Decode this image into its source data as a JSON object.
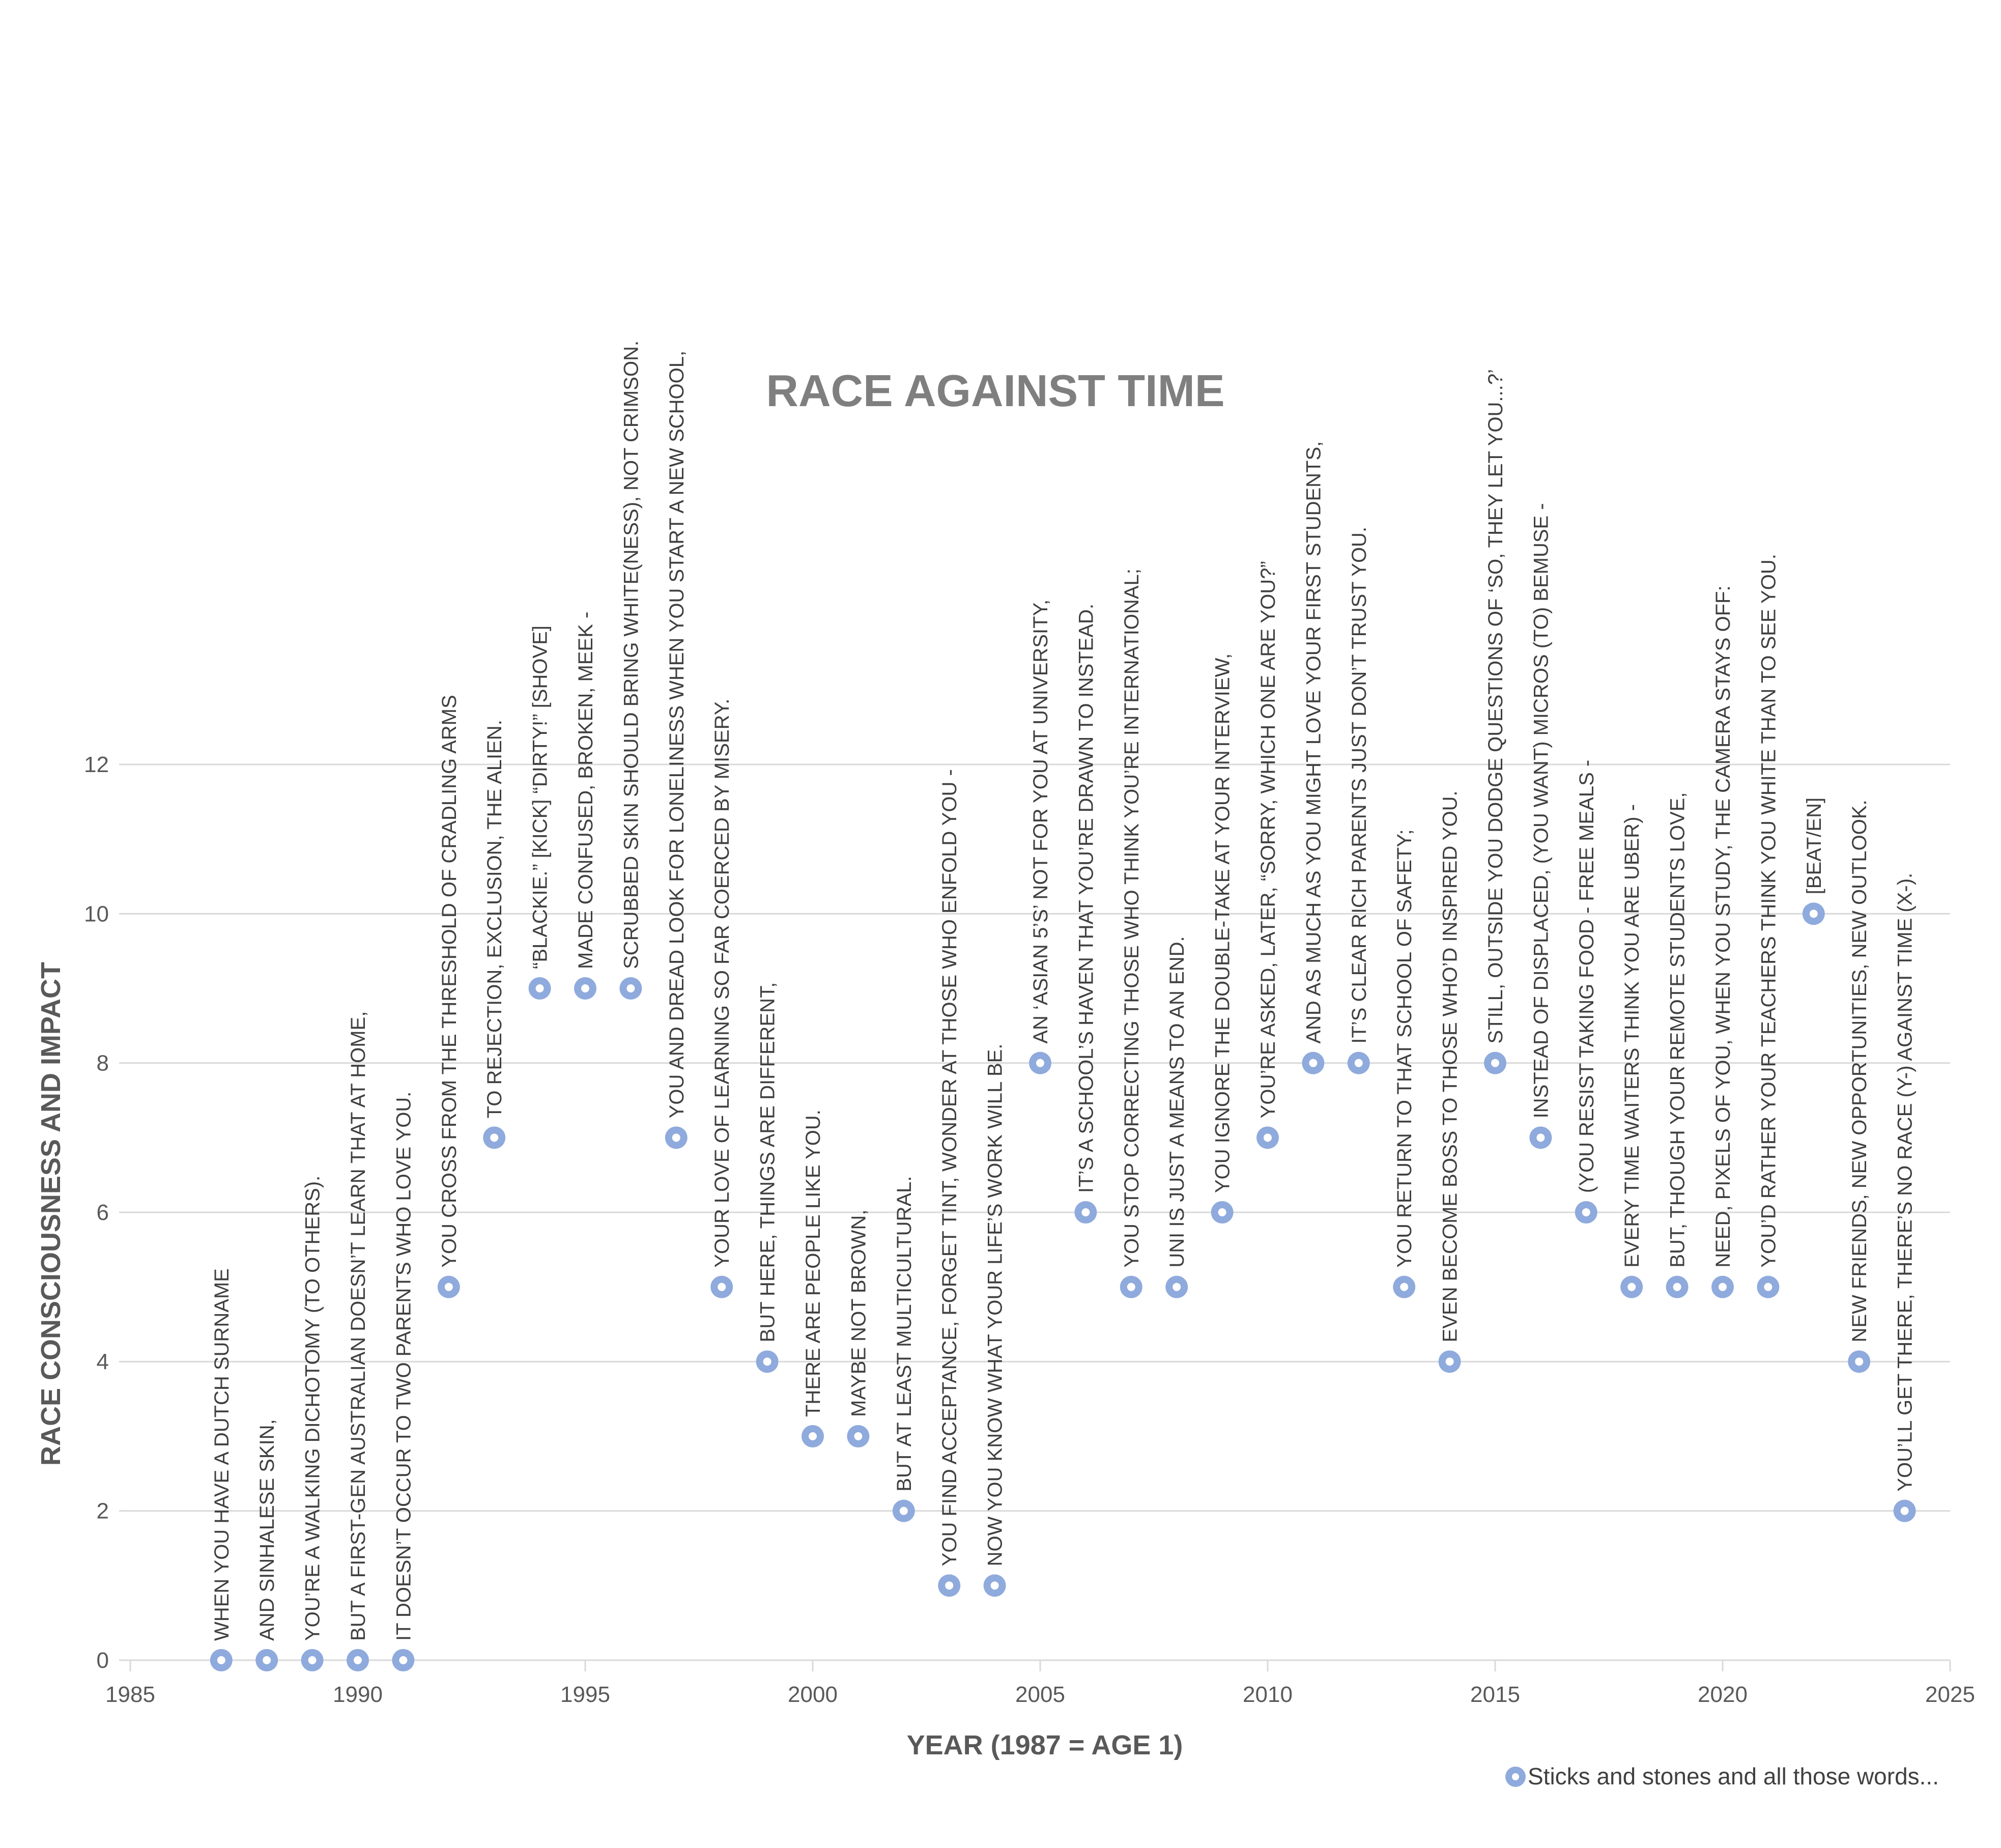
{
  "chart_data": {
    "type": "scatter",
    "title": "RACE AGAINST TIME",
    "xlabel": "YEAR (1987 = AGE 1)",
    "ylabel": "RACE CONSCIOUSNESS AND IMPACT",
    "xlim": [
      1985,
      2025
    ],
    "ylim": [
      0,
      12
    ],
    "x_ticks": [
      1985,
      1990,
      1995,
      2000,
      2005,
      2010,
      2015,
      2020,
      2025
    ],
    "y_ticks": [
      0,
      2,
      4,
      6,
      8,
      10,
      12
    ],
    "grid": true,
    "legend_position": "bottom-right",
    "marker_color": "#8FAADC",
    "series": [
      {
        "name": "Sticks and stones and all those words...",
        "points": [
          {
            "x": 1987,
            "y": 0,
            "label": "WHEN YOU HAVE A DUTCH SURNAME"
          },
          {
            "x": 1988,
            "y": 0,
            "label": "AND SINHALESE SKIN,"
          },
          {
            "x": 1989,
            "y": 0,
            "label": "YOU’RE A WALKING DICHOTOMY (TO OTHERS)."
          },
          {
            "x": 1990,
            "y": 0,
            "label": "BUT A FIRST-GEN AUSTRALIAN DOESN’T LEARN THAT AT HOME,"
          },
          {
            "x": 1991,
            "y": 0,
            "label": "IT DOESN’T OCCUR TO TWO PARENTS WHO LOVE YOU."
          },
          {
            "x": 1992,
            "y": 5,
            "label": "YOU CROSS FROM THE THRESHOLD OF CRADLING ARMS"
          },
          {
            "x": 1993,
            "y": 7,
            "label": "TO REJECTION, EXCLUSION, THE ALIEN."
          },
          {
            "x": 1994,
            "y": 9,
            "label": "“BLACKIE.” [KICK] “DIRTY!” [SHOVE]"
          },
          {
            "x": 1995,
            "y": 9,
            "label": "MADE CONFUSED, BROKEN, MEEK -"
          },
          {
            "x": 1996,
            "y": 9,
            "label": "SCRUBBED SKIN SHOULD BRING WHITE(NESS), NOT CRIMSON."
          },
          {
            "x": 1997,
            "y": 7,
            "label": "YOU AND DREAD LOOK FOR LONELINESS WHEN YOU START A NEW SCHOOL,"
          },
          {
            "x": 1998,
            "y": 5,
            "label": "YOUR LOVE OF LEARNING SO FAR COERCED BY MISERY."
          },
          {
            "x": 1999,
            "y": 4,
            "label": "BUT HERE, THINGS ARE DIFFERENT,"
          },
          {
            "x": 2000,
            "y": 3,
            "label": "THERE ARE PEOPLE LIKE YOU."
          },
          {
            "x": 2001,
            "y": 3,
            "label": "MAYBE NOT BROWN,"
          },
          {
            "x": 2002,
            "y": 2,
            "label": "BUT AT LEAST MULTICULTURAL."
          },
          {
            "x": 2003,
            "y": 1,
            "label": "YOU FIND ACCEPTANCE, FORGET TINT, WONDER AT THOSE WHO ENFOLD YOU -"
          },
          {
            "x": 2004,
            "y": 1,
            "label": "NOW YOU KNOW WHAT YOUR LIFE’S WORK WILL BE."
          },
          {
            "x": 2005,
            "y": 8,
            "label": "AN ‘ASIAN 5’S’ NOT FOR YOU AT UNIVERSITY,"
          },
          {
            "x": 2006,
            "y": 6,
            "label": "IT’S A SCHOOL’S HAVEN THAT YOU’RE DRAWN TO INSTEAD."
          },
          {
            "x": 2007,
            "y": 5,
            "label": "YOU STOP CORRECTING THOSE WHO THINK YOU’RE INTERNATIONAL;"
          },
          {
            "x": 2008,
            "y": 5,
            "label": "UNI IS JUST A MEANS TO AN END."
          },
          {
            "x": 2009,
            "y": 6,
            "label": "YOU IGNORE THE DOUBLE-TAKE AT YOUR INTERVIEW,"
          },
          {
            "x": 2010,
            "y": 7,
            "label": "YOU’RE ASKED, LATER, “SORRY, WHICH ONE ARE YOU?”"
          },
          {
            "x": 2011,
            "y": 8,
            "label": "AND AS MUCH AS YOU MIGHT LOVE YOUR FIRST STUDENTS,"
          },
          {
            "x": 2012,
            "y": 8,
            "label": "IT’S CLEAR RICH PARENTS JUST DON’T TRUST YOU."
          },
          {
            "x": 2013,
            "y": 5,
            "label": "YOU RETURN TO THAT SCHOOL OF SAFETY;"
          },
          {
            "x": 2014,
            "y": 4,
            "label": "EVEN BECOME BOSS TO THOSE WHO’D INSPIRED YOU."
          },
          {
            "x": 2015,
            "y": 8,
            "label": "STILL, OUTSIDE YOU DODGE QUESTIONS OF ‘SO, THEY LET YOU...?’"
          },
          {
            "x": 2016,
            "y": 7,
            "label": "INSTEAD OF DISPLACED, (YOU WANT) MICROS (TO) BEMUSE -"
          },
          {
            "x": 2017,
            "y": 6,
            "label": "(YOU RESIST TAKING FOOD - FREE MEALS -"
          },
          {
            "x": 2018,
            "y": 5,
            "label": "EVERY TIME WAITERS THINK YOU ARE UBER) -"
          },
          {
            "x": 2019,
            "y": 5,
            "label": "BUT, THOUGH YOUR REMOTE STUDENTS LOVE,"
          },
          {
            "x": 2020,
            "y": 5,
            "label": "NEED, PIXELS OF YOU, WHEN YOU STUDY, THE CAMERA STAYS OFF:"
          },
          {
            "x": 2021,
            "y": 5,
            "label": "YOU’D RATHER YOUR TEACHERS THINK YOU WHITE THAN TO SEE YOU."
          },
          {
            "x": 2022,
            "y": 10,
            "label": "[BEAT/EN]"
          },
          {
            "x": 2023,
            "y": 4,
            "label": "NEW FRIENDS, NEW OPPORTUNITIES, NEW OUTLOOK."
          },
          {
            "x": 2024,
            "y": 2,
            "label": "YOU’LL GET THERE, THERE’S NO RACE (Y-) AGAINST TIME (X-)."
          }
        ]
      }
    ]
  }
}
